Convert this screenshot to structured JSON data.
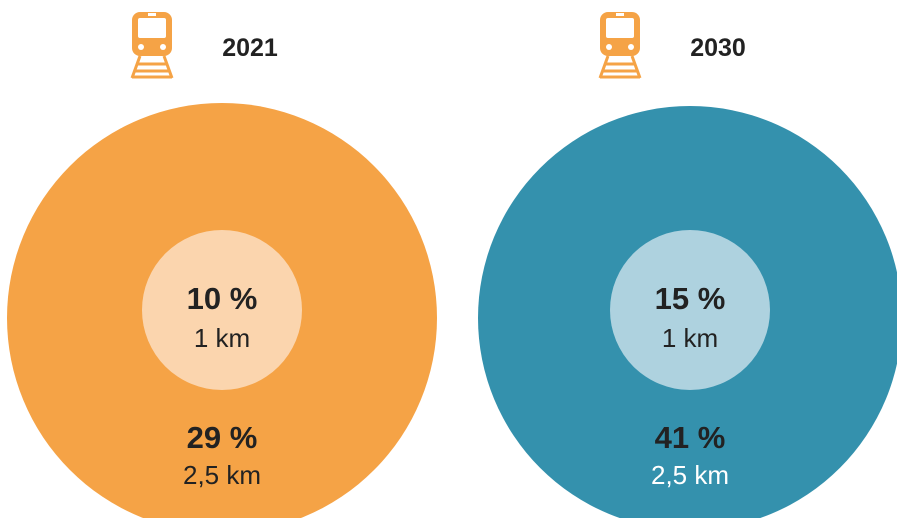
{
  "panels": [
    {
      "year": "2021",
      "inner": {
        "percent": "10 %",
        "distance": "1 km"
      },
      "outer": {
        "percent": "29 %",
        "distance": "2,5 km"
      }
    },
    {
      "year": "2030",
      "inner": {
        "percent": "15 %",
        "distance": "1 km"
      },
      "outer": {
        "percent": "41 %",
        "distance": "2,5 km"
      }
    }
  ]
}
